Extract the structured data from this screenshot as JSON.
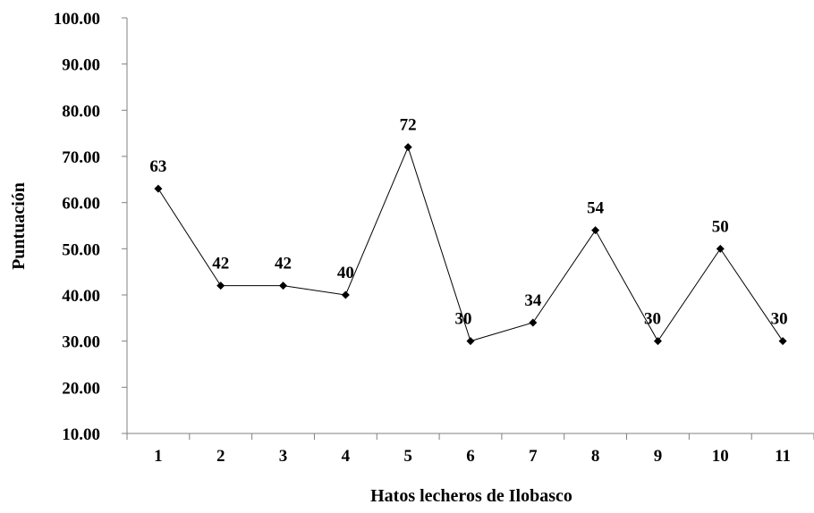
{
  "chart_data": {
    "type": "line",
    "title": "",
    "xlabel": "Hatos lecheros de Ilobasco",
    "ylabel": "Puntuación",
    "categories": [
      "1",
      "2",
      "3",
      "4",
      "5",
      "6",
      "7",
      "8",
      "9",
      "10",
      "11"
    ],
    "series": [
      {
        "values": [
          63,
          42,
          42,
          40,
          72,
          30,
          34,
          54,
          30,
          50,
          30
        ],
        "data_labels": [
          "63",
          "42",
          "42",
          "40",
          "72",
          "30",
          "34",
          "54",
          "30",
          "50",
          "30"
        ]
      }
    ],
    "ylim": [
      10,
      100
    ],
    "yticks": [
      10,
      20,
      30,
      40,
      50,
      60,
      70,
      80,
      90,
      100
    ],
    "ytick_labels": [
      "10.00",
      "20.00",
      "30.00",
      "40.00",
      "50.00",
      "60.00",
      "70.00",
      "80.00",
      "90.00",
      "100.00"
    ],
    "grid": false,
    "legend": "none",
    "colors": {
      "line": "#000000",
      "marker": "#000000",
      "axis": "#808080"
    },
    "marker": "diamond"
  }
}
